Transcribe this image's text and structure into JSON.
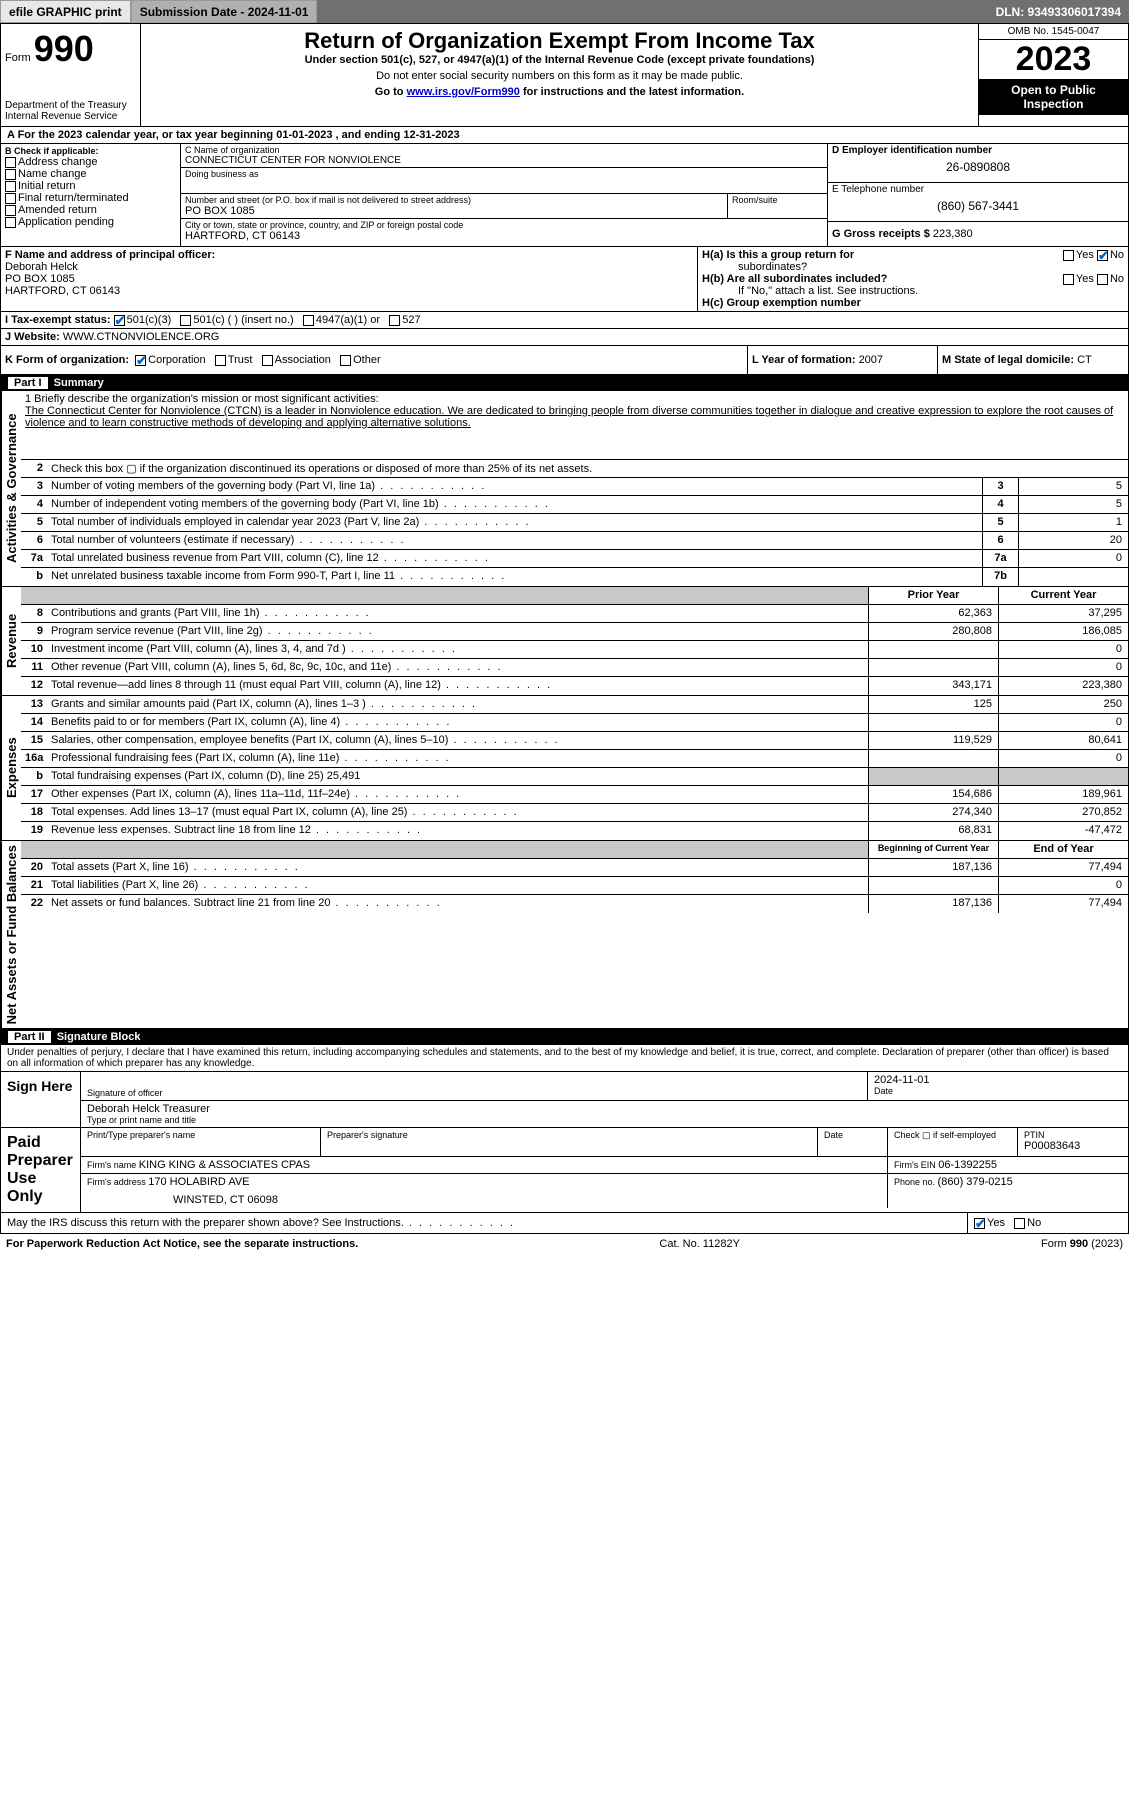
{
  "topbar": {
    "efile": "efile GRAPHIC print",
    "submission": "Submission Date - 2024-11-01",
    "dln": "DLN: 93493306017394"
  },
  "header": {
    "form_label": "Form",
    "form_num": "990",
    "dept": "Department of the Treasury",
    "irs": "Internal Revenue Service",
    "title": "Return of Organization Exempt From Income Tax",
    "sub1": "Under section 501(c), 527, or 4947(a)(1) of the Internal Revenue Code (except private foundations)",
    "sub2": "Do not enter social security numbers on this form as it may be made public.",
    "sub3_pre": "Go to ",
    "sub3_link": "www.irs.gov/Form990",
    "sub3_post": " for instructions and the latest information.",
    "omb": "OMB No. 1545-0047",
    "year": "2023",
    "open": "Open to Public Inspection"
  },
  "period": {
    "a_pre": "A   For the 2023 calendar year, or tax year beginning ",
    "begin": "01-01-2023",
    "mid": "   , and ending ",
    "end": "12-31-2023"
  },
  "boxB": {
    "label": "B Check if applicable:",
    "items": [
      "Address change",
      "Name change",
      "Initial return",
      "Final return/terminated",
      "Amended return",
      "Application pending"
    ]
  },
  "boxC": {
    "name_lbl": "C Name of organization",
    "name": "CONNECTICUT CENTER FOR NONVIOLENCE",
    "dba_lbl": "Doing business as",
    "addr_lbl": "Number and street (or P.O. box if mail is not delivered to street address)",
    "room_lbl": "Room/suite",
    "addr": "PO BOX 1085",
    "city_lbl": "City or town, state or province, country, and ZIP or foreign postal code",
    "city": "HARTFORD, CT  06143"
  },
  "boxD": {
    "lbl": "D Employer identification number",
    "val": "26-0890808"
  },
  "boxE": {
    "lbl": "E Telephone number",
    "val": "(860) 567-3441"
  },
  "boxG": {
    "lbl": "G Gross receipts $",
    "val": "223,380"
  },
  "boxF": {
    "lbl": "F Name and address of principal officer:",
    "name": "Deborah Helck",
    "addr1": "PO BOX 1085",
    "addr2": "HARTFORD, CT  06143"
  },
  "boxH": {
    "a_lbl": "H(a)  Is this a group return for",
    "a_lbl2": "subordinates?",
    "a_yn": {
      "yes": "Yes",
      "no": "No"
    },
    "b_lbl": "H(b)  Are all subordinates included?",
    "b_note": "If \"No,\" attach a list. See instructions.",
    "c_lbl": "H(c)  Group exemption number  "
  },
  "boxI": {
    "lbl": "I     Tax-exempt status:",
    "opts": [
      "501(c)(3)",
      "501(c) (  ) (insert no.)",
      "4947(a)(1) or",
      "527"
    ]
  },
  "boxJ": {
    "lbl": "J     Website: ",
    "val": "WWW.CTNONVIOLENCE.ORG"
  },
  "boxK": {
    "lbl": "K Form of organization:",
    "opts": [
      "Corporation",
      "Trust",
      "Association",
      "Other"
    ]
  },
  "boxL": {
    "lbl": "L Year of formation: ",
    "val": "2007"
  },
  "boxM": {
    "lbl": "M State of legal domicile: ",
    "val": "CT"
  },
  "part1": {
    "label": "Part I",
    "title": "Summary"
  },
  "sideLabels": {
    "gov": "Activities & Governance",
    "rev": "Revenue",
    "exp": "Expenses",
    "net": "Net Assets or Fund Balances"
  },
  "mission": {
    "q": "1   Briefly describe the organization's mission or most significant activities:",
    "text": "The Connecticut Center for Nonviolence (CTCN) is a leader in Nonviolence education. We are dedicated to bringing people from diverse communities together in dialogue and creative expression to explore the root causes of violence and to learn constructive methods of developing and applying alternative solutions."
  },
  "govRows": [
    {
      "n": "2",
      "t": "Check this box  ▢  if the organization discontinued its operations or disposed of more than 25% of its net assets."
    },
    {
      "n": "3",
      "t": "Number of voting members of the governing body (Part VI, line 1a)",
      "an": "3",
      "av": "5"
    },
    {
      "n": "4",
      "t": "Number of independent voting members of the governing body (Part VI, line 1b)",
      "an": "4",
      "av": "5"
    },
    {
      "n": "5",
      "t": "Total number of individuals employed in calendar year 2023 (Part V, line 2a)",
      "an": "5",
      "av": "1"
    },
    {
      "n": "6",
      "t": "Total number of volunteers (estimate if necessary)",
      "an": "6",
      "av": "20"
    },
    {
      "n": "7a",
      "t": "Total unrelated business revenue from Part VIII, column (C), line 12",
      "an": "7a",
      "av": "0"
    },
    {
      "n": "b",
      "t": "Net unrelated business taxable income from Form 990-T, Part I, line 11",
      "an": "7b",
      "av": ""
    }
  ],
  "amtHdr": {
    "prior": "Prior Year",
    "curr": "Current Year"
  },
  "revRows": [
    {
      "n": "8",
      "t": "Contributions and grants (Part VIII, line 1h)",
      "p": "62,363",
      "c": "37,295"
    },
    {
      "n": "9",
      "t": "Program service revenue (Part VIII, line 2g)",
      "p": "280,808",
      "c": "186,085"
    },
    {
      "n": "10",
      "t": "Investment income (Part VIII, column (A), lines 3, 4, and 7d )",
      "p": "",
      "c": "0"
    },
    {
      "n": "11",
      "t": "Other revenue (Part VIII, column (A), lines 5, 6d, 8c, 9c, 10c, and 11e)",
      "p": "",
      "c": "0"
    },
    {
      "n": "12",
      "t": "Total revenue—add lines 8 through 11 (must equal Part VIII, column (A), line 12)",
      "p": "343,171",
      "c": "223,380"
    }
  ],
  "expRows": [
    {
      "n": "13",
      "t": "Grants and similar amounts paid (Part IX, column (A), lines 1–3 )",
      "p": "125",
      "c": "250"
    },
    {
      "n": "14",
      "t": "Benefits paid to or for members (Part IX, column (A), line 4)",
      "p": "",
      "c": "0"
    },
    {
      "n": "15",
      "t": "Salaries, other compensation, employee benefits (Part IX, column (A), lines 5–10)",
      "p": "119,529",
      "c": "80,641"
    },
    {
      "n": "16a",
      "t": "Professional fundraising fees (Part IX, column (A), line 11e)",
      "p": "",
      "c": "0"
    },
    {
      "n": "b",
      "t": "Total fundraising expenses (Part IX, column (D), line 25) 25,491",
      "shade": true
    },
    {
      "n": "17",
      "t": "Other expenses (Part IX, column (A), lines 11a–11d, 11f–24e)",
      "p": "154,686",
      "c": "189,961"
    },
    {
      "n": "18",
      "t": "Total expenses. Add lines 13–17 (must equal Part IX, column (A), line 25)",
      "p": "274,340",
      "c": "270,852"
    },
    {
      "n": "19",
      "t": "Revenue less expenses. Subtract line 18 from line 12",
      "p": "68,831",
      "c": "-47,472"
    }
  ],
  "netHdr": {
    "prior": "Beginning of Current Year",
    "curr": "End of Year"
  },
  "netRows": [
    {
      "n": "20",
      "t": "Total assets (Part X, line 16)",
      "p": "187,136",
      "c": "77,494"
    },
    {
      "n": "21",
      "t": "Total liabilities (Part X, line 26)",
      "p": "",
      "c": "0"
    },
    {
      "n": "22",
      "t": "Net assets or fund balances. Subtract line 21 from line 20",
      "p": "187,136",
      "c": "77,494"
    }
  ],
  "part2": {
    "label": "Part II",
    "title": "Signature Block"
  },
  "perjury": "Under penalties of perjury, I declare that I have examined this return, including accompanying schedules and statements, and to the best of my knowledge and belief, it is true, correct, and complete. Declaration of preparer (other than officer) is based on all information of which preparer has any knowledge.",
  "sign": {
    "here": "Sign Here",
    "sig_lbl": "Signature of officer",
    "date_lbl": "Date",
    "date_val": "2024-11-01",
    "name": "Deborah Helck  Treasurer",
    "type_lbl": "Type or print name and title"
  },
  "paid": {
    "here": "Paid Preparer Use Only",
    "prep_lbl": "Print/Type preparer's name",
    "psig_lbl": "Preparer's signature",
    "pdate_lbl": "Date",
    "check_lbl": "Check ▢ if self-employed",
    "ptin_lbl": "PTIN",
    "ptin": "P00083643",
    "firm_lbl": "Firm's name   ",
    "firm": "KING KING & ASSOCIATES CPAS",
    "ein_lbl": "Firm's EIN  ",
    "ein": "06-1392255",
    "addr_lbl": "Firm's address ",
    "addr1": "170 HOLABIRD AVE",
    "addr2": "WINSTED, CT  06098",
    "phone_lbl": "Phone no. ",
    "phone": "(860) 379-0215"
  },
  "discuss": {
    "q": "May the IRS discuss this return with the preparer shown above? See Instructions.",
    "yes": "Yes",
    "no": "No"
  },
  "footer": {
    "l": "For Paperwork Reduction Act Notice, see the separate instructions.",
    "m": "Cat. No. 11282Y",
    "r": "Form 990 (2023)"
  }
}
